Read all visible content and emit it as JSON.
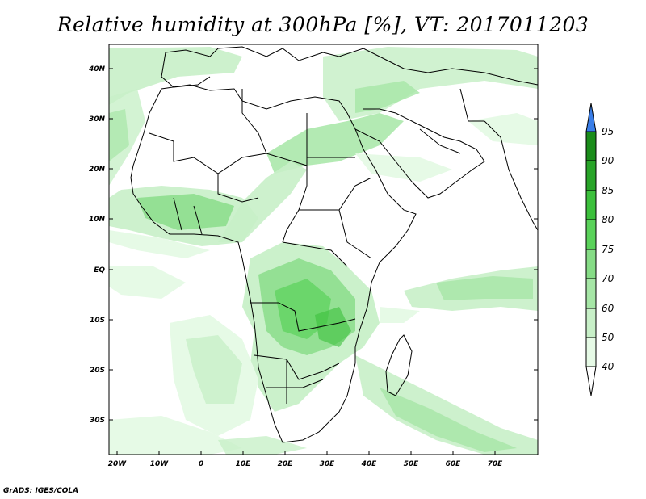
{
  "title": "Relative humidity at 300hPa [%], VT: 2017011203",
  "credit": "GrADS: IGES/COLA",
  "map": {
    "lat_labels": [
      "40N",
      "30N",
      "20N",
      "10N",
      "EQ",
      "10S",
      "20S",
      "30S"
    ],
    "lon_labels": [
      "20W",
      "10W",
      "0",
      "10E",
      "20E",
      "30E",
      "40E",
      "50E",
      "60E",
      "70E"
    ]
  },
  "colorbar": {
    "levels": [
      "40",
      "50",
      "60",
      "70",
      "75",
      "80",
      "85",
      "90",
      "95"
    ],
    "colors": [
      "#ffffff",
      "#e6fae6",
      "#c8f0c8",
      "#a6e6a6",
      "#86dc86",
      "#5ad25a",
      "#3cc03c",
      "#28a428",
      "#1a8c1a"
    ],
    "over_color": "#3a7ee8",
    "under_color": "#ffffff"
  }
}
